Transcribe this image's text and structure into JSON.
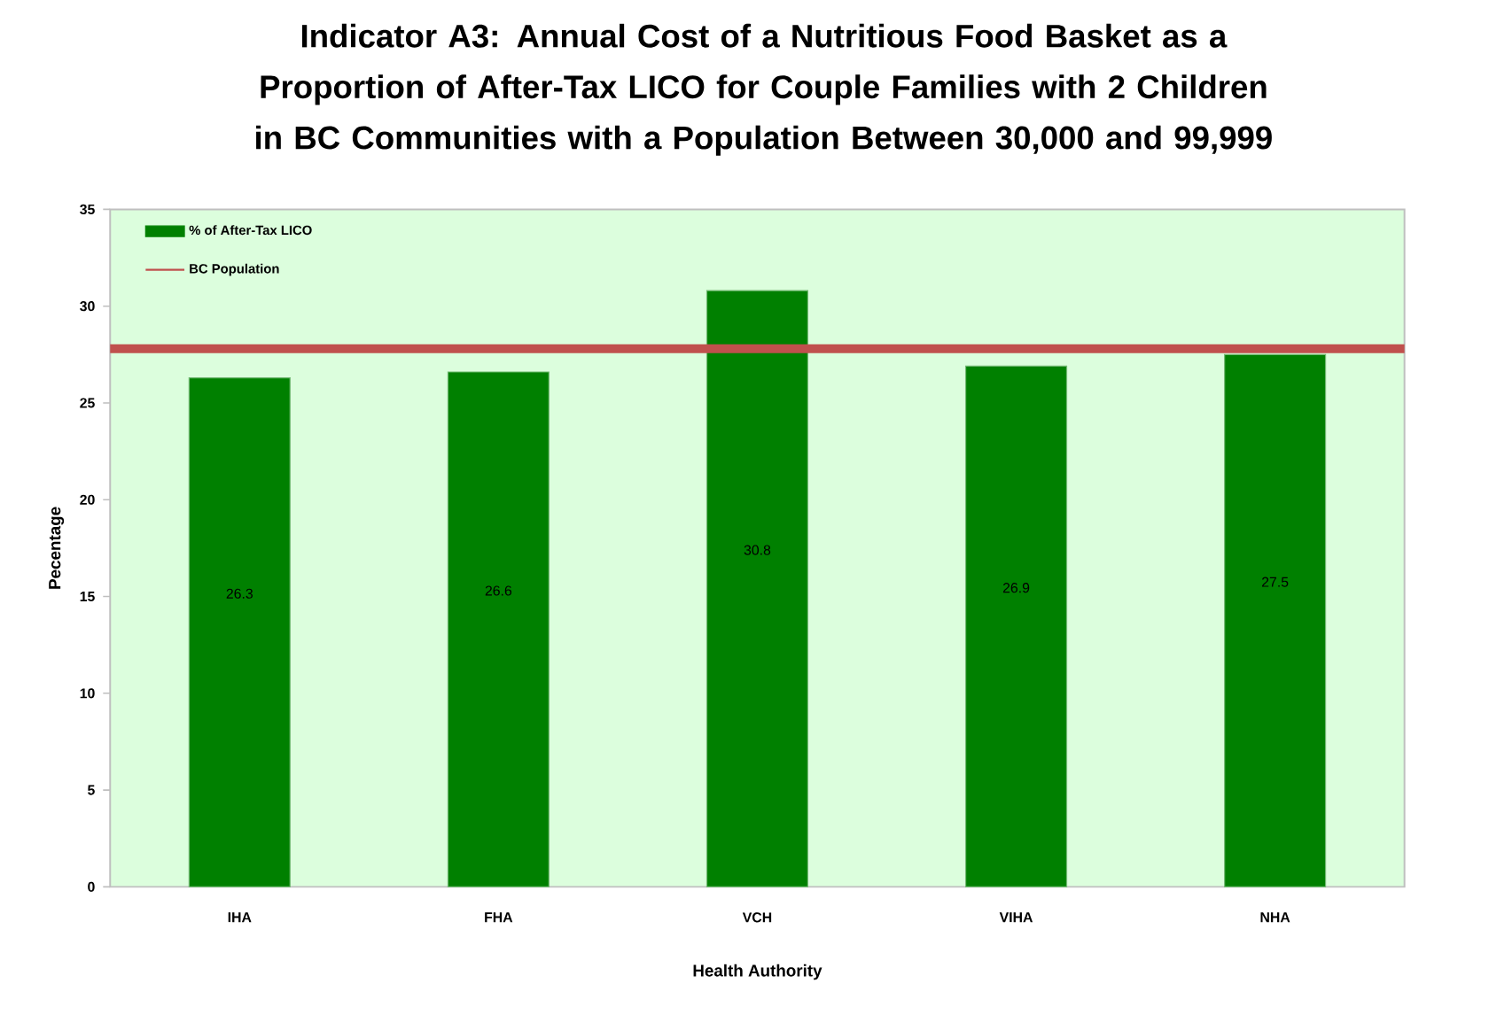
{
  "chart_data": {
    "type": "bar",
    "title": "Indicator A3: Annual Cost of a Nutritious Food Basket as a Proportion of After-Tax LICO for Couple Families with 2 Children in BC Communities with a Population Between 30,000 and 99,999",
    "xlabel": "Health Authority",
    "ylabel": "Pecentage",
    "categories": [
      "IHA",
      "FHA",
      "VCH",
      "VIHA",
      "NHA"
    ],
    "series": [
      {
        "name": "% of After-Tax LICO",
        "color": "#008000",
        "values": [
          26.3,
          26.6,
          30.8,
          26.9,
          27.5
        ]
      }
    ],
    "ylim": [
      0,
      35
    ],
    "yticks": [
      0,
      5,
      10,
      15,
      20,
      25,
      30,
      35
    ],
    "ref_lines": [
      {
        "axis": "y",
        "value": 27.8,
        "label": "BC Population",
        "color": "#c0504d"
      }
    ],
    "data_labels": true,
    "legend": "top left",
    "grid": false
  }
}
